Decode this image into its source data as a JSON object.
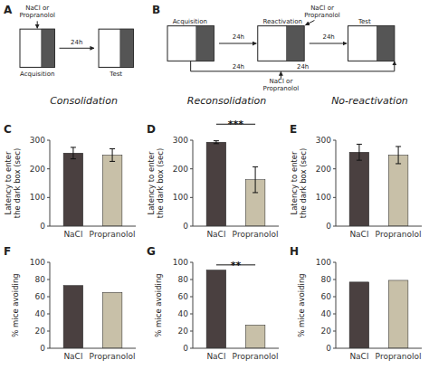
{
  "chart_data": [
    {
      "type": "diagram",
      "title": "A",
      "annotations": [
        "Acquisition",
        "24h",
        "Test",
        "NaCl or\nPropranolol"
      ]
    },
    {
      "type": "diagram",
      "title": "B",
      "annotations": [
        "Acquisition",
        "24h",
        "Reactivation",
        "NaCl or\nPropranolol",
        "24h",
        "Test",
        "24h",
        "24h",
        "NaCl or\nPropranolol"
      ]
    },
    {
      "type": "bar",
      "title": "Consolidation",
      "y_label": "Latency to enter\nthe dark box (sec)",
      "categories": [
        "NaCl",
        "Propranolol"
      ],
      "values": [
        255,
        248
      ],
      "errors": [
        20,
        22
      ],
      "colors": [
        "#4a4040",
        "#c8c0a8"
      ],
      "ylim": [
        0,
        300
      ],
      "yticks": [
        0,
        100,
        200,
        300
      ],
      "annotations": [
        "C"
      ]
    },
    {
      "type": "bar",
      "title": "Reconsolidation",
      "y_label": "Latency to enter\nthe dark box (sec)",
      "categories": [
        "NaCl",
        "Propranolol"
      ],
      "values": [
        293,
        162
      ],
      "errors": [
        5,
        45
      ],
      "colors": [
        "#4a4040",
        "#c8c0a8"
      ],
      "ylim": [
        0,
        300
      ],
      "yticks": [
        0,
        100,
        200,
        300
      ],
      "annotations": [
        "D",
        "***"
      ]
    },
    {
      "type": "bar",
      "title": "No-reactivation",
      "y_label": "Latency to enter\nthe dark box (sec)",
      "categories": [
        "NaCl",
        "Propranolol"
      ],
      "values": [
        258,
        248
      ],
      "errors": [
        28,
        30
      ],
      "colors": [
        "#4a4040",
        "#c8c0a8"
      ],
      "ylim": [
        0,
        300
      ],
      "yticks": [
        0,
        100,
        200,
        300
      ],
      "annotations": [
        "E"
      ]
    },
    {
      "type": "bar",
      "y_label": "% mice avoiding",
      "categories": [
        "NaCl",
        "Propranolol"
      ],
      "values": [
        73,
        65
      ],
      "colors": [
        "#4a4040",
        "#c8c0a8"
      ],
      "ylim": [
        0,
        100
      ],
      "yticks": [
        0,
        20,
        40,
        60,
        80,
        100
      ],
      "annotations": [
        "F"
      ]
    },
    {
      "type": "bar",
      "y_label": "% mice avoiding",
      "categories": [
        "NaCl",
        "Propranolol"
      ],
      "values": [
        91,
        27
      ],
      "colors": [
        "#4a4040",
        "#c8c0a8"
      ],
      "ylim": [
        0,
        100
      ],
      "yticks": [
        0,
        20,
        40,
        60,
        80,
        100
      ],
      "annotations": [
        "G",
        "**"
      ]
    },
    {
      "type": "bar",
      "y_label": "% mice avoiding",
      "categories": [
        "NaCl",
        "Propranolol"
      ],
      "values": [
        77,
        79
      ],
      "colors": [
        "#4a4040",
        "#c8c0a8"
      ],
      "ylim": [
        0,
        100
      ],
      "yticks": [
        0,
        20,
        40,
        60,
        80,
        100
      ],
      "annotations": [
        "H"
      ]
    }
  ]
}
